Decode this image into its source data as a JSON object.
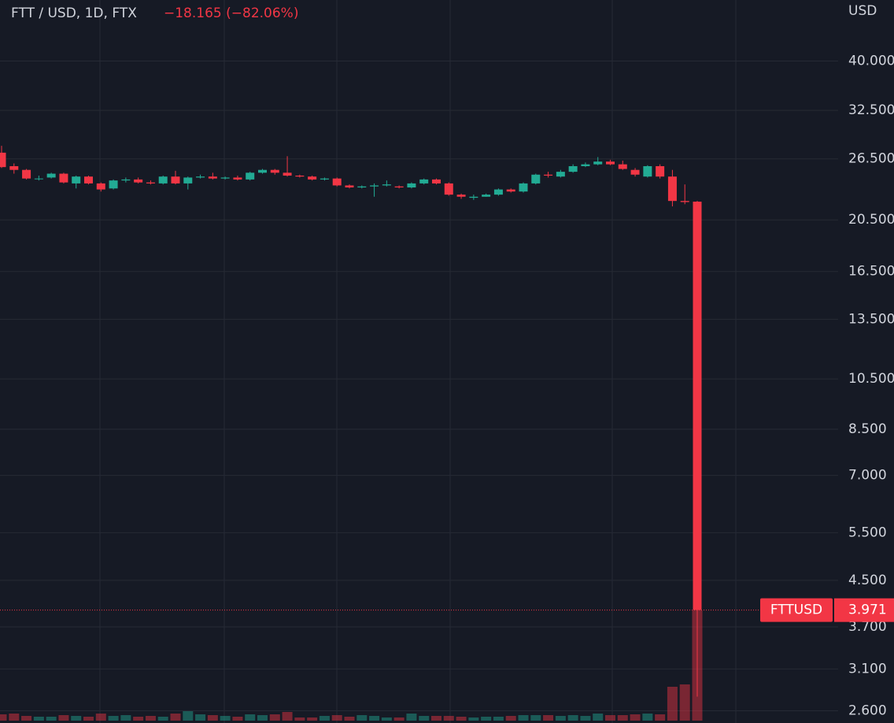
{
  "chart_data": {
    "type": "candlestick",
    "title": "FTT / USD, 1D, FTX",
    "change": "−18.165 (−82.06%)",
    "symbol": "FTTUSD",
    "y_unit": "USD",
    "log_scale": true,
    "grid": true,
    "up_color": "#22ab94",
    "down_color": "#f23645",
    "ylim": [
      2.47,
      51.7
    ],
    "yticks": [
      {
        "value": 2.6,
        "label": "2.600"
      },
      {
        "value": 3.1,
        "label": "3.100"
      },
      {
        "value": 3.7,
        "label": "3.700"
      },
      {
        "value": 4.5,
        "label": "4.500"
      },
      {
        "value": 5.5,
        "label": "5.500"
      },
      {
        "value": 7,
        "label": "7.000"
      },
      {
        "value": 8.5,
        "label": "8.500"
      },
      {
        "value": 10.5,
        "label": "10.500"
      },
      {
        "value": 13.5,
        "label": "13.500"
      },
      {
        "value": 16.5,
        "label": "16.500"
      },
      {
        "value": 20.5,
        "label": "20.500"
      },
      {
        "value": 26.5,
        "label": "26.500"
      },
      {
        "value": 32.5,
        "label": "32.500"
      },
      {
        "value": 40,
        "label": "40.000"
      }
    ],
    "open": [
      27.2,
      25.7,
      25.3,
      24.4,
      24.5,
      24.9,
      23.9,
      24.6,
      23.9,
      23.4,
      24.2,
      24.3,
      24.0,
      23.9,
      24.6,
      23.9,
      24.5,
      24.6,
      24.4,
      24.5,
      24.3,
      25.0,
      25.3,
      25.0,
      24.7,
      24.6,
      24.3,
      24.4,
      23.7,
      23.5,
      23.6,
      23.7,
      23.6,
      23.5,
      23.9,
      24.3,
      23.9,
      22.8,
      22.5,
      22.6,
      22.8,
      23.3,
      23.1,
      23.9,
      24.8,
      24.6,
      25.1,
      25.7,
      25.9,
      26.2,
      25.9,
      25.3,
      24.6,
      25.7,
      24.6,
      22.2,
      22.136
    ],
    "high": [
      28.0,
      26.0,
      25.4,
      24.7,
      25.0,
      25.0,
      24.7,
      24.7,
      24.0,
      24.3,
      24.5,
      24.5,
      24.2,
      24.7,
      25.2,
      24.6,
      24.8,
      25.0,
      24.6,
      24.7,
      25.1,
      25.4,
      25.4,
      26.8,
      24.8,
      24.7,
      24.5,
      24.5,
      23.8,
      23.7,
      23.9,
      24.2,
      23.7,
      24.0,
      24.4,
      24.4,
      24.0,
      22.9,
      22.8,
      22.9,
      23.4,
      23.4,
      24.0,
      24.9,
      25.1,
      25.3,
      25.9,
      26.1,
      26.7,
      26.4,
      26.3,
      25.5,
      25.8,
      25.9,
      25.3,
      23.8,
      22.2
    ],
    "low": [
      25.5,
      24.9,
      24.3,
      24.2,
      24.4,
      23.9,
      23.4,
      23.8,
      23.1,
      23.3,
      24.0,
      23.9,
      23.8,
      23.8,
      23.8,
      23.3,
      24.4,
      24.3,
      24.3,
      24.2,
      24.2,
      24.9,
      24.8,
      24.6,
      24.5,
      24.2,
      24.2,
      23.6,
      23.4,
      23.4,
      22.6,
      23.6,
      23.4,
      23.4,
      23.8,
      23.8,
      22.7,
      22.4,
      22.3,
      22.6,
      22.7,
      23.0,
      23.0,
      23.8,
      24.5,
      24.5,
      25.0,
      25.6,
      25.8,
      25.8,
      25.3,
      24.6,
      24.5,
      24.4,
      21.7,
      21.9,
      2.76
    ],
    "close": [
      25.6,
      25.3,
      24.4,
      24.4,
      24.9,
      24.0,
      24.6,
      23.9,
      23.3,
      24.2,
      24.3,
      24.0,
      23.9,
      24.6,
      23.9,
      24.5,
      24.6,
      24.4,
      24.5,
      24.3,
      25.0,
      25.3,
      25.0,
      24.7,
      24.6,
      24.3,
      24.4,
      23.7,
      23.5,
      23.6,
      23.7,
      23.8,
      23.5,
      23.9,
      24.3,
      23.9,
      22.8,
      22.6,
      22.6,
      22.8,
      23.3,
      23.1,
      23.9,
      24.8,
      24.7,
      25.1,
      25.7,
      25.9,
      26.2,
      25.9,
      25.4,
      24.8,
      25.7,
      24.6,
      22.2,
      22.1,
      3.971
    ],
    "volume": [
      8,
      9,
      6,
      5,
      5,
      7,
      6,
      5,
      9,
      6,
      7,
      5,
      6,
      5,
      9,
      12,
      8,
      7,
      6,
      5,
      8,
      7,
      8,
      11,
      4,
      4,
      6,
      7,
      5,
      7,
      6,
      4,
      4,
      9,
      6,
      6,
      6,
      5,
      4,
      5,
      5,
      6,
      7,
      7,
      7,
      6,
      7,
      6,
      9,
      7,
      7,
      8,
      9,
      8,
      43,
      46,
      140
    ]
  }
}
